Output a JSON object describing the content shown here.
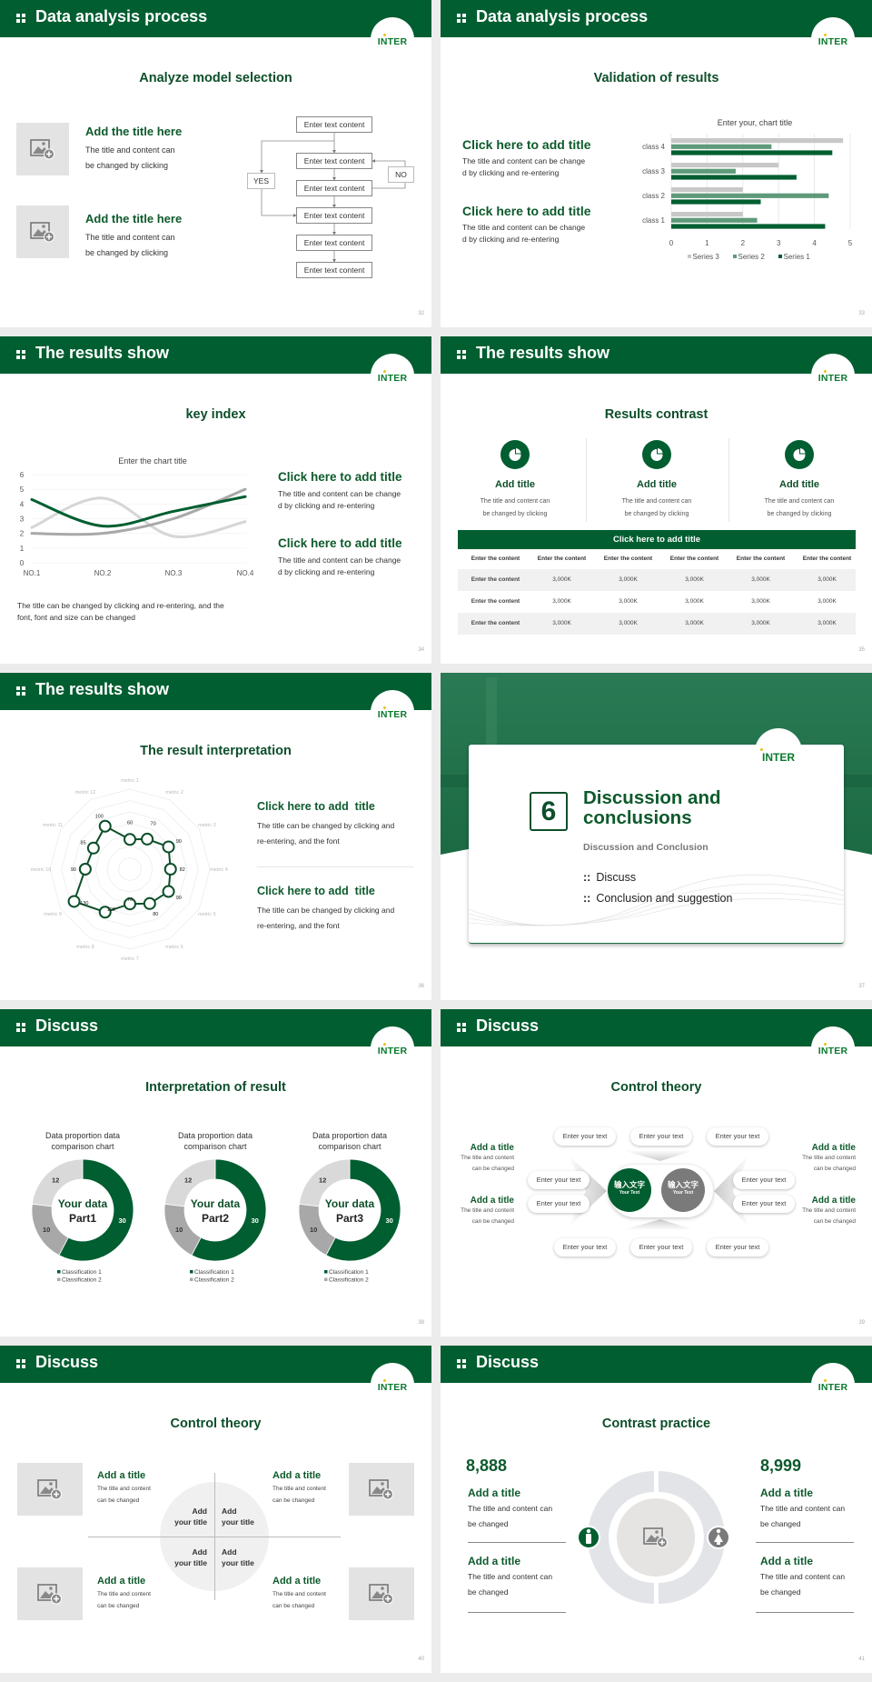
{
  "brand": "INTER",
  "colors": {
    "primary_green": "#005e30",
    "title_green": "#0d4f2a",
    "mid_green": "#5f9a7a",
    "light_gray": "#d0d0d0",
    "mid_gray": "#a8a8a8"
  },
  "slides": [
    {
      "header": "Data analysis process",
      "subtitle": "Analyze model selection",
      "page": "32",
      "items": [
        {
          "title": "Add the title here",
          "l1": "The title and content can",
          "l2": "be changed by clicking",
          "icon": "image-placeholder-icon"
        },
        {
          "title": "Add the title here",
          "l1": "The title and content can",
          "l2": "be changed by clicking",
          "icon": "image-placeholder-icon"
        }
      ],
      "flow": {
        "boxes": [
          "Enter text content",
          "Enter text content",
          "Enter text content",
          "Enter text content",
          "Enter text content",
          "Enter text content"
        ],
        "yes": "YES",
        "no": "NO"
      }
    },
    {
      "header": "Data analysis process",
      "subtitle": "Validation of results",
      "page": "33",
      "items": [
        {
          "title": "Click here to add title",
          "l1": "The title and content can be change",
          "l2": "d by clicking and re-entering"
        },
        {
          "title": "Click here to add title",
          "l1": "The title and content can be change",
          "l2": "d by clicking and re-entering"
        }
      ]
    },
    {
      "header": "The results show",
      "subtitle": "key index",
      "page": "34",
      "items": [
        {
          "title": "Click here to add title",
          "l1": "The title and content can be change",
          "l2": "d by clicking and re-entering"
        },
        {
          "title": "Click here to add title",
          "l1": "The title and content can be change",
          "l2": "d by clicking and re-entering"
        }
      ],
      "note1": "The title can be changed by clicking and re-entering, and the",
      "note2": "font, font and size can be changed"
    },
    {
      "header": "The results show",
      "subtitle": "Results contrast",
      "page": "35",
      "cols": [
        {
          "title": "Add title",
          "l1": "The title and content can",
          "l2": "be changed by clicking",
          "icon": "pie-chart-icon"
        },
        {
          "title": "Add title",
          "l1": "The title and content can",
          "l2": "be changed by clicking",
          "icon": "pie-chart-icon"
        },
        {
          "title": "Add title",
          "l1": "The title and content can",
          "l2": "be changed by clicking",
          "icon": "pie-chart-icon"
        }
      ],
      "table": {
        "title": "Click here to add title",
        "header": [
          "Enter the content",
          "Enter the content",
          "Enter the content",
          "Enter the content",
          "Enter the content",
          "Enter the content"
        ],
        "rows": [
          [
            "Enter the content",
            "3,000K",
            "3,000K",
            "3,000K",
            "3,000K",
            "3,000K"
          ],
          [
            "Enter the content",
            "3,000K",
            "3,000K",
            "3,000K",
            "3,000K",
            "3,000K"
          ],
          [
            "Enter the content",
            "3,000K",
            "3,000K",
            "3,000K",
            "3,000K",
            "3,000K"
          ]
        ]
      }
    },
    {
      "header": "The results show",
      "subtitle": "The result interpretation",
      "page": "36",
      "items": [
        {
          "title": "Click here to add  title",
          "l1": "The title can be changed by clicking and",
          "l2": "re-entering, and the font"
        },
        {
          "title": "Click here to add  title",
          "l1": "The title can be changed by clicking and",
          "l2": "re-entering, and the font"
        }
      ]
    },
    {
      "number": "6",
      "title1": "Discussion and",
      "title2": "conclusions",
      "subtitle": "Discussion and Conclusion",
      "bullets": [
        "Discuss",
        "Conclusion and suggestion"
      ],
      "page": "37"
    },
    {
      "header": "Discuss",
      "subtitle": "Interpretation of result",
      "page": "38",
      "donuts": [
        {
          "center1": "Your data",
          "center2": "Part1"
        },
        {
          "center1": "Your data",
          "center2": "Part2"
        },
        {
          "center1": "Your data",
          "center2": "Part3"
        }
      ]
    },
    {
      "header": "Discuss",
      "subtitle": "Control theory",
      "page": "39",
      "pill": "Enter your text",
      "center_left": {
        "cn": "输入文字",
        "en": "Your Text"
      },
      "center_right": {
        "cn": "输入文字",
        "en": "Your Text"
      },
      "side": {
        "title": "Add a title",
        "l1": "The title and content",
        "l2": "can be changed"
      }
    },
    {
      "header": "Discuss",
      "subtitle": "Control theory",
      "page": "40",
      "side": {
        "title": "Add a title",
        "l1": "The title and content",
        "l2": "can be changed"
      },
      "quad": {
        "l1": "Add",
        "l2": "your title"
      }
    },
    {
      "header": "Discuss",
      "subtitle": "Contrast practice",
      "page": "41",
      "left_number": "8,888",
      "right_number": "8,999",
      "item": {
        "title": "Add a title",
        "l1": "The title and content can",
        "l2": "be changed"
      },
      "icons": [
        "male-icon",
        "female-icon"
      ]
    }
  ],
  "chart_data": [
    {
      "type": "bar",
      "orientation": "horizontal",
      "title": "Enter your, chart title",
      "categories": [
        "class 1",
        "class 2",
        "class 3",
        "class 4"
      ],
      "series": [
        {
          "name": "Series 1",
          "values": [
            4.3,
            2.5,
            3.5,
            4.5
          ],
          "color": "#005e30"
        },
        {
          "name": "Series 2",
          "values": [
            2.4,
            4.4,
            1.8,
            2.8
          ],
          "color": "#5f9a7a"
        },
        {
          "name": "Series 3",
          "values": [
            2.0,
            2.0,
            3.0,
            4.8
          ],
          "color": "#c8c8c8"
        }
      ],
      "xlim": [
        0,
        5
      ],
      "xticks": [
        "0",
        "1",
        "2",
        "3",
        "4",
        "5"
      ],
      "grid": true,
      "legend": "bottom"
    },
    {
      "type": "line",
      "smooth": true,
      "title": "Enter the chart title",
      "categories": [
        "NO.1",
        "NO.2",
        "NO.3",
        "NO.4"
      ],
      "series": [
        {
          "values": [
            4.3,
            2.5,
            3.5,
            4.5
          ],
          "color": "#005e30"
        },
        {
          "values": [
            2.4,
            4.4,
            1.8,
            2.8
          ],
          "color": "#d6d6d6"
        },
        {
          "values": [
            2.0,
            2.0,
            3.0,
            5.0
          ],
          "color": "#a8a8a8"
        }
      ],
      "ylim": [
        0,
        6
      ],
      "yticks": [
        "0",
        "1",
        "2",
        "3",
        "4",
        "5",
        "6"
      ],
      "grid": true
    },
    {
      "type": "radar",
      "categories": [
        "metric 1",
        "metric 2",
        "metric 3",
        "metric 4",
        "metric 5",
        "metric 6",
        "metric 7",
        "metric 8",
        "metric 9",
        "metric 10",
        "metric 11",
        "metric 12"
      ],
      "values": [
        60,
        70,
        90,
        82,
        90,
        80,
        70,
        100,
        130,
        90,
        85,
        100
      ],
      "rmax": 150,
      "color": "#0d4f2a"
    },
    {
      "type": "pie",
      "donut": true,
      "title1": "Data proportion data",
      "title2": "comparison chart",
      "values": [
        30,
        10,
        12
      ],
      "labels": [
        "30",
        "10",
        "12"
      ],
      "legend": [
        "Classification 1",
        "Classification 2"
      ],
      "colors": [
        "#005e30",
        "#a8a8a8",
        "#d9d9d9"
      ]
    },
    {
      "type": "pie",
      "donut": true,
      "title1": "Data proportion data",
      "title2": "comparison chart",
      "values": [
        30,
        10,
        12
      ],
      "labels": [
        "30",
        "10",
        "12"
      ],
      "legend": [
        "Classification 1",
        "Classification 2"
      ],
      "colors": [
        "#005e30",
        "#a8a8a8",
        "#d9d9d9"
      ]
    },
    {
      "type": "pie",
      "donut": true,
      "title1": "Data proportion data",
      "title2": "comparison chart",
      "values": [
        30,
        10,
        12
      ],
      "labels": [
        "30",
        "10",
        "12"
      ],
      "legend": [
        "Classification 1",
        "Classification 2"
      ],
      "colors": [
        "#005e30",
        "#a8a8a8",
        "#d9d9d9"
      ]
    }
  ]
}
